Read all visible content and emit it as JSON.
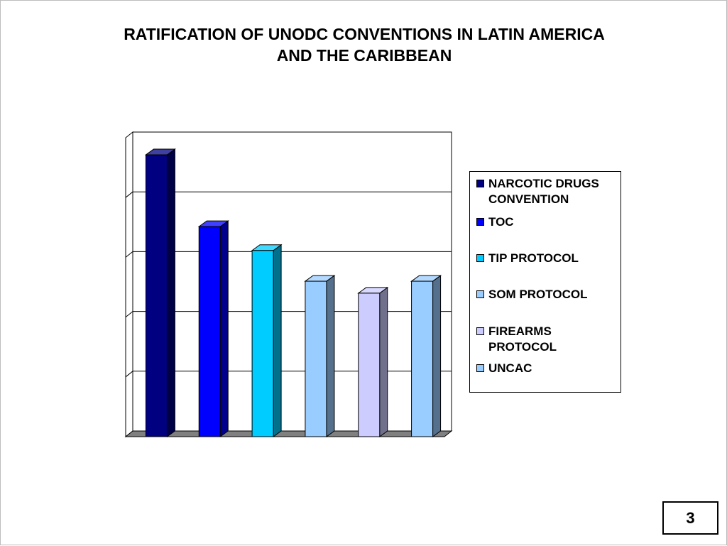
{
  "slide": {
    "title_line1": "RATIFICATION OF UNODC CONVENTIONS IN LATIN AMERICA",
    "title_line2": "AND THE CARIBBEAN",
    "page_number": "3"
  },
  "chart_data": {
    "type": "bar",
    "title": "RATIFICATION OF UNODC CONVENTIONS IN LATIN AMERICA AND THE CARIBBEAN",
    "categories": [
      "NARCOTIC DRUGS CONVENTION",
      "TOC",
      "TIP PROTOCOL",
      "SOM PROTOCOL",
      "FIREARMS PROTOCOL",
      "UNCAC"
    ],
    "values": [
      33,
      24.6,
      21.8,
      18.2,
      16.8,
      18.2
    ],
    "colors": [
      "#000080",
      "#0000ff",
      "#00ccff",
      "#99ccff",
      "#ccccff",
      "#99ccff"
    ],
    "ylim": [
      0,
      35
    ],
    "grid": true,
    "legend": "right",
    "three_d": true
  }
}
